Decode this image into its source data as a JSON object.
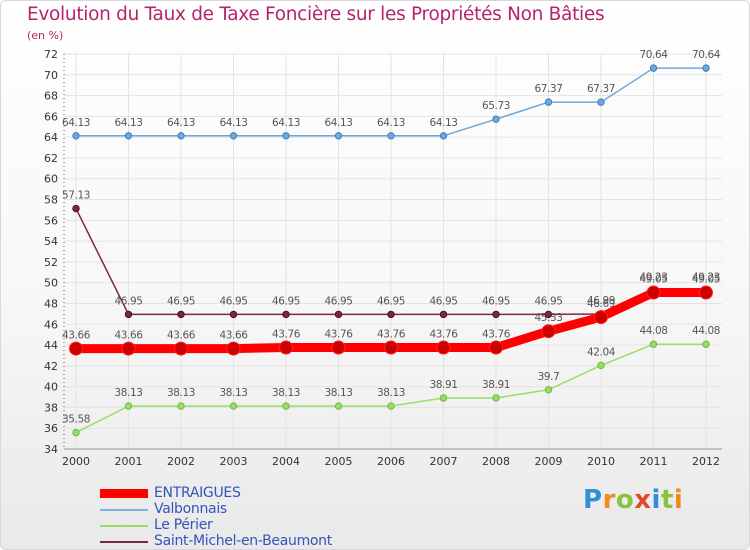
{
  "chart_data": {
    "type": "line",
    "title": "Evolution du Taux de Taxe Foncière sur les Propriétés Non Bâties",
    "ylabel": "(en %)",
    "xlabel": "",
    "ylim": [
      34,
      72
    ],
    "yticks": [
      34,
      36,
      38,
      40,
      42,
      44,
      46,
      48,
      50,
      52,
      54,
      56,
      58,
      60,
      62,
      64,
      66,
      68,
      70,
      72
    ],
    "categories": [
      "2000",
      "2001",
      "2002",
      "2003",
      "2004",
      "2005",
      "2006",
      "2007",
      "2008",
      "2009",
      "2010",
      "2011",
      "2012"
    ],
    "legend_position": "bottom-left",
    "series": [
      {
        "name": "ENTRAIGUES",
        "color": "#ff0000",
        "values": [
          43.66,
          43.66,
          43.66,
          43.66,
          43.76,
          43.76,
          43.76,
          43.76,
          43.76,
          45.33,
          46.69,
          49.05,
          49.05
        ],
        "labels": [
          "43.66",
          "43.66",
          "43.66",
          "43.66",
          "43.76",
          "43.76",
          "43.76",
          "43.76",
          "43.76",
          "45.33",
          "46.69",
          "49.05",
          "49.05"
        ]
      },
      {
        "name": "Valbonnais",
        "color": "#6fa8dc",
        "values": [
          64.13,
          64.13,
          64.13,
          64.13,
          64.13,
          64.13,
          64.13,
          64.13,
          65.73,
          67.37,
          67.37,
          70.64,
          70.64
        ],
        "labels": [
          "64.13",
          "64.13",
          "64.13",
          "64.13",
          "64.13",
          "64.13",
          "64.13",
          "64.13",
          "65.73",
          "67.37",
          "67.37",
          "70.64",
          "70.64"
        ]
      },
      {
        "name": "Le Périer",
        "color": "#99dd66",
        "values": [
          35.58,
          38.13,
          38.13,
          38.13,
          38.13,
          38.13,
          38.13,
          38.91,
          38.91,
          39.7,
          42.04,
          44.08,
          44.08
        ],
        "labels": [
          "35.58",
          "38.13",
          "38.13",
          "38.13",
          "38.13",
          "38.13",
          "38.13",
          "38.91",
          "38.91",
          "39.7",
          "42.04",
          "44.08",
          "44.08"
        ]
      },
      {
        "name": "Saint-Michel-en-Beaumont",
        "color": "#7a2a3a",
        "values": [
          57.13,
          46.95,
          46.95,
          46.95,
          46.95,
          46.95,
          46.95,
          46.95,
          46.95,
          46.95,
          46.99,
          49.23,
          49.23
        ],
        "labels": [
          "57.13",
          "46.95",
          "46.95",
          "46.95",
          "46.95",
          "46.95",
          "46.95",
          "46.95",
          "46.95",
          "46.95",
          "46.99",
          "49.23",
          "49.23"
        ]
      }
    ]
  },
  "legend": [
    {
      "label": "ENTRAIGUES",
      "color": "#ff0000",
      "text_color": "#3355bb"
    },
    {
      "label": "Valbonnais",
      "color": "#7fb2e0",
      "text_color": "#3355bb"
    },
    {
      "label": "Le Périer",
      "color": "#99dd66",
      "text_color": "#3355bb"
    },
    {
      "label": "Saint-Michel-en-Beaumont",
      "color": "#7a2a3a",
      "text_color": "#3355bb"
    }
  ],
  "logo": {
    "text": "Proxiti",
    "letter_colors": [
      "#2f8fd8",
      "#f08a1c",
      "#8ac43f",
      "#e04a2f",
      "#2f8fd8",
      "#8ac43f",
      "#f08a1c"
    ]
  }
}
